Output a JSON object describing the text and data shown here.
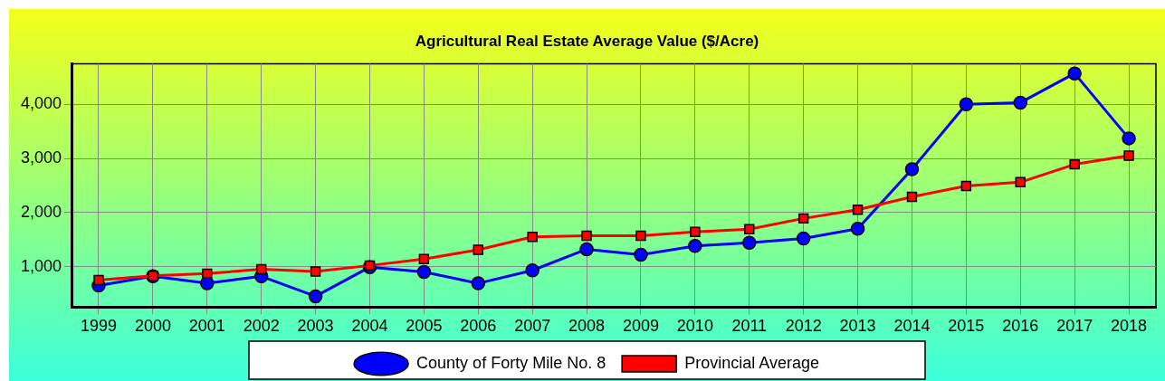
{
  "chart_data": {
    "type": "line",
    "title": "Agricultural Real Estate Average Value ($/Acre)",
    "categories": [
      "1999",
      "2000",
      "2001",
      "2002",
      "2003",
      "2004",
      "2005",
      "2006",
      "2007",
      "2008",
      "2009",
      "2010",
      "2011",
      "2012",
      "2013",
      "2014",
      "2015",
      "2016",
      "2017",
      "2018"
    ],
    "series": [
      {
        "name": "County of Forty Mile No. 8",
        "color": "#0000ff",
        "marker": "circle",
        "values": [
          650,
          820,
          690,
          820,
          450,
          990,
          900,
          690,
          930,
          1320,
          1220,
          1380,
          1440,
          1520,
          1700,
          2800,
          4000,
          4030,
          4570,
          3370
        ]
      },
      {
        "name": "Provincial Average",
        "color": "#ff0000",
        "marker": "square",
        "values": [
          750,
          830,
          870,
          950,
          910,
          1020,
          1140,
          1310,
          1550,
          1570,
          1570,
          1640,
          1690,
          1890,
          2050,
          2290,
          2490,
          2560,
          2890,
          3050
        ]
      }
    ],
    "ylim": [
      250,
      4750
    ],
    "yticks": [
      {
        "value": 1000,
        "label": "1,000"
      },
      {
        "value": 2000,
        "label": "2,000"
      },
      {
        "value": 3000,
        "label": "3,000"
      },
      {
        "value": 4000,
        "label": "4,000"
      }
    ],
    "grid": true,
    "legend": "bottom",
    "line_style": "solid"
  }
}
